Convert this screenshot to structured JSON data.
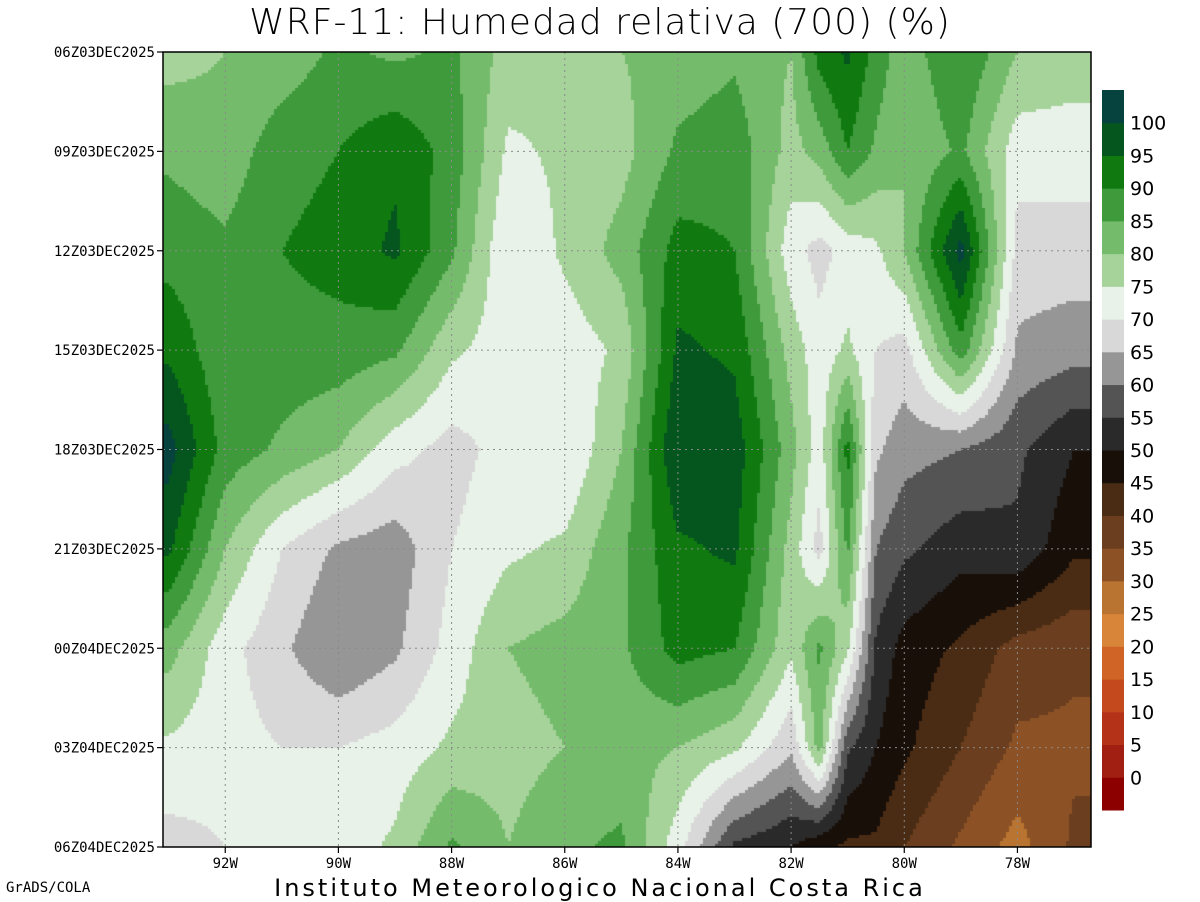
{
  "footer": {
    "left": "GrADS/COLA",
    "center": "Instituto Meteorologico Nacional Costa Rica"
  },
  "chart_data": {
    "type": "heatmap",
    "title": "WRF-11: Humedad relativa (700) (%)",
    "xlabel": "",
    "ylabel": "",
    "x_ticks": [
      "92W",
      "90W",
      "88W",
      "86W",
      "84W",
      "82W",
      "80W",
      "78W"
    ],
    "x_tick_values": [
      -92,
      -90,
      -88,
      -86,
      -84,
      -82,
      -80,
      -78
    ],
    "xlim": [
      -93.1,
      -76.7
    ],
    "y_ticks": [
      "06Z03DEC2025",
      "09Z03DEC2025",
      "12Z03DEC2025",
      "15Z03DEC2025",
      "18Z03DEC2025",
      "21Z03DEC2025",
      "00Z04DEC2025",
      "03Z04DEC2025",
      "06Z04DEC2025"
    ],
    "y_tick_hours": [
      0,
      3,
      6,
      9,
      12,
      15,
      18,
      21,
      24
    ],
    "grid": true,
    "colorbar": {
      "labels": [
        "0",
        "5",
        "10",
        "15",
        "20",
        "25",
        "30",
        "35",
        "40",
        "45",
        "50",
        "55",
        "60",
        "65",
        "70",
        "75",
        "80",
        "85",
        "90",
        "95",
        "100"
      ],
      "levels": [
        0,
        5,
        10,
        15,
        20,
        25,
        30,
        35,
        40,
        45,
        50,
        55,
        60,
        65,
        70,
        75,
        80,
        85,
        90,
        95,
        100
      ],
      "colors": [
        "#8c0000",
        "#a01e12",
        "#b43218",
        "#c44a1e",
        "#cf6426",
        "#d8853a",
        "#b87430",
        "#8c5226",
        "#6a3e1e",
        "#4a2c14",
        "#180f08",
        "#2a2a2a",
        "#545454",
        "#969696",
        "#d8d8d8",
        "#e8f2e8",
        "#a6d39a",
        "#74bb6c",
        "#3e9a3a",
        "#107a10",
        "#04561e",
        "#06423e",
        "#0a2c66",
        "#0a1a8c"
      ]
    },
    "x_lon_grid": [
      -93,
      -92,
      -91,
      -90,
      -89,
      -88,
      -87,
      -86,
      -85,
      -84,
      -83,
      -82,
      -81.5,
      -81,
      -80.5,
      -80,
      -79,
      -78,
      -77
    ],
    "t_hours_grid": [
      0,
      3,
      6,
      9,
      12,
      15,
      18,
      21,
      24
    ],
    "rh_values": [
      [
        68,
        70,
        72,
        76,
        74,
        76,
        68,
        66,
        70,
        72,
        74,
        70,
        82,
        86,
        78,
        72,
        80,
        70,
        68
      ],
      [
        74,
        72,
        78,
        80,
        84,
        78,
        64,
        66,
        68,
        76,
        78,
        68,
        72,
        80,
        74,
        70,
        76,
        62,
        62
      ],
      [
        78,
        76,
        80,
        82,
        86,
        76,
        60,
        66,
        72,
        82,
        80,
        62,
        58,
        62,
        64,
        70,
        92,
        58,
        58
      ],
      [
        84,
        76,
        78,
        78,
        76,
        66,
        62,
        62,
        66,
        86,
        84,
        68,
        62,
        66,
        60,
        58,
        78,
        54,
        52
      ],
      [
        92,
        78,
        74,
        70,
        62,
        58,
        62,
        60,
        70,
        90,
        88,
        72,
        62,
        82,
        56,
        52,
        50,
        46,
        40
      ],
      [
        86,
        70,
        60,
        54,
        52,
        60,
        64,
        66,
        74,
        84,
        86,
        68,
        58,
        76,
        50,
        46,
        42,
        44,
        36
      ],
      [
        72,
        62,
        56,
        50,
        54,
        62,
        70,
        72,
        74,
        82,
        80,
        66,
        76,
        66,
        44,
        38,
        34,
        28,
        26
      ],
      [
        64,
        62,
        60,
        60,
        62,
        66,
        68,
        70,
        72,
        70,
        66,
        56,
        72,
        46,
        40,
        36,
        30,
        24,
        24
      ],
      [
        58,
        60,
        62,
        62,
        66,
        76,
        70,
        74,
        76,
        62,
        44,
        40,
        36,
        34,
        34,
        30,
        24,
        18,
        26
      ]
    ]
  }
}
